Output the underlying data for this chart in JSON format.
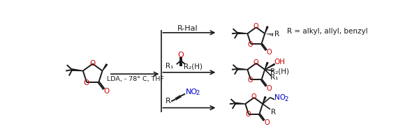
{
  "bg_color": "#ffffff",
  "figsize": [
    6.0,
    1.98
  ],
  "dpi": 100,
  "reagent_text": "LDA, - 78° C, THF",
  "reaction1_label": "R-Hal",
  "R_annotation": "R = alkyl, allyl, benzyl",
  "font_color_black": "#1a1a1a",
  "font_color_red": "#cc0000",
  "font_color_blue": "#0000cc",
  "arrow_color": "#1a1a1a"
}
